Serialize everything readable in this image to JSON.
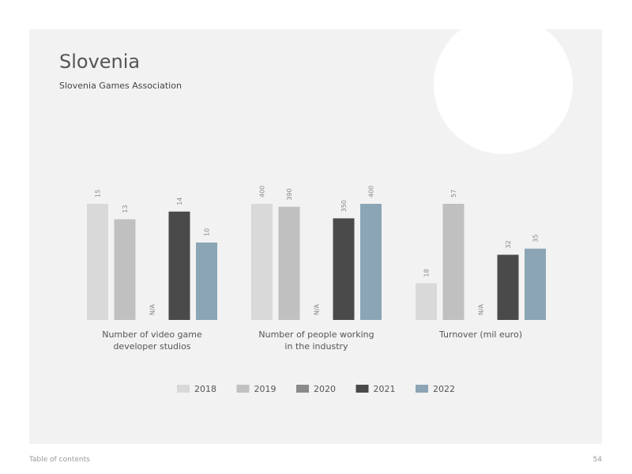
{
  "header": {
    "title": "Slovenia",
    "subtitle": "Slovenia Games Association"
  },
  "legend": [
    {
      "name": "2018",
      "color": "#d9d9d9"
    },
    {
      "name": "2019",
      "color": "#c0c0c0"
    },
    {
      "name": "2020",
      "color": "#8a8a8a"
    },
    {
      "name": "2021",
      "color": "#4a4a4a"
    },
    {
      "name": "2022",
      "color": "#8ba5b5"
    }
  ],
  "chart_data": [
    {
      "type": "bar",
      "title": "Number of video game developer studios",
      "values": [
        15,
        13,
        null,
        14,
        10
      ],
      "value_labels": [
        "15",
        "13",
        "N/A",
        "14",
        "10"
      ],
      "ylim": [
        0,
        15
      ]
    },
    {
      "type": "bar",
      "title": "Number of people working in the industry",
      "values": [
        400,
        390,
        null,
        350,
        400
      ],
      "value_labels": [
        "400",
        "390",
        "N/A",
        "350",
        "400"
      ],
      "ylim": [
        0,
        400
      ]
    },
    {
      "type": "bar",
      "title": "Turnover (mil euro)",
      "values": [
        18,
        57,
        null,
        32,
        35
      ],
      "value_labels": [
        "18",
        "57",
        "N/A",
        "32",
        "35"
      ],
      "ylim": [
        0,
        57
      ]
    }
  ],
  "footer": {
    "link": "Table of contents",
    "page": "54"
  }
}
